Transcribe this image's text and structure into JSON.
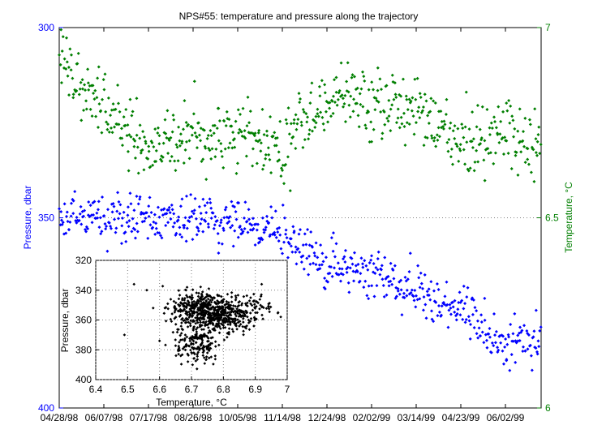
{
  "chart_data": [
    {
      "type": "scatter",
      "title": "NPS#55: temperature and pressure along the trajectory",
      "x_tick_labels": [
        "04/28/98",
        "06/07/98",
        "07/17/98",
        "08/26/98",
        "10/05/98",
        "11/14/98",
        "12/24/98",
        "02/02/99",
        "03/14/99",
        "04/23/99",
        "06/02/99"
      ],
      "x_start": "04/28/98",
      "x_end": "07/04/99",
      "left_axis": {
        "label": "Pressure, dbar",
        "reversed": true,
        "ylim": [
          300,
          400
        ],
        "ticks": [
          300,
          350,
          400
        ],
        "color": "#0000ff"
      },
      "right_axis": {
        "label": "Temperature, °C",
        "ylim": [
          6,
          7
        ],
        "ticks": [
          6,
          6.5,
          7
        ],
        "color": "#007f00"
      },
      "grid": true,
      "pressure_series_trend": {
        "dates": [
          "04/28/98",
          "06/07/98",
          "07/17/98",
          "08/26/98",
          "10/05/98",
          "11/14/98",
          "12/24/98",
          "02/02/99",
          "03/14/99",
          "04/23/99",
          "06/02/99",
          "07/04/99"
        ],
        "values": [
          349,
          350,
          351,
          350,
          351,
          355,
          362,
          364,
          369,
          374,
          383,
          382
        ]
      },
      "temperature_series_trend": {
        "dates": [
          "04/28/98",
          "06/07/98",
          "07/17/98",
          "08/26/98",
          "10/05/98",
          "11/14/98",
          "12/24/98",
          "02/02/99",
          "03/14/99",
          "04/23/99",
          "06/02/99",
          "07/04/99"
        ],
        "values": [
          6.92,
          6.78,
          6.68,
          6.72,
          6.72,
          6.68,
          6.83,
          6.8,
          6.79,
          6.7,
          6.73,
          6.68
        ]
      }
    },
    {
      "type": "scatter",
      "xlabel": "Temperature, °C",
      "ylabel": "Pressure, dbar",
      "xlim": [
        6.4,
        7
      ],
      "ylim": [
        320,
        400
      ],
      "x_ticks": [
        "6.4",
        "6.5",
        "6.6",
        "6.7",
        "6.8",
        "6.9",
        "7"
      ],
      "y_ticks": [
        "320",
        "340",
        "360",
        "380",
        "400"
      ],
      "reversed_y": true,
      "grid": true,
      "clusters": [
        {
          "temperature": 6.73,
          "pressure": 352
        },
        {
          "temperature": 6.8,
          "pressure": 358
        },
        {
          "temperature": 6.72,
          "pressure": 376
        },
        {
          "temperature": 6.9,
          "pressure": 350
        }
      ]
    }
  ],
  "colors": {
    "pressure": "#0000ff",
    "temperature": "#007f00",
    "inset": "#000000",
    "grid": "#7f7f7f"
  }
}
